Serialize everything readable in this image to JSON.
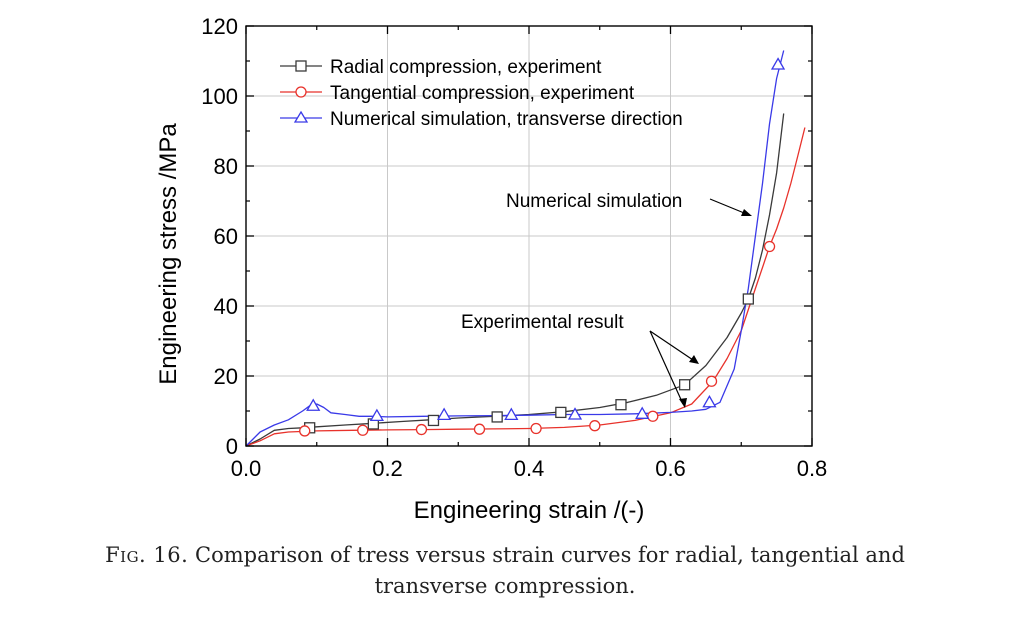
{
  "chart_data": {
    "type": "line",
    "xlabel": "Engineering strain /(-)",
    "ylabel": "Engineering stress /MPa",
    "xlim": [
      0.0,
      0.8
    ],
    "ylim": [
      0,
      120
    ],
    "x_ticks": [
      "0.0",
      "0.2",
      "0.4",
      "0.6",
      "0.8"
    ],
    "y_ticks": [
      "0",
      "20",
      "40",
      "60",
      "80",
      "100",
      "120"
    ],
    "grid": true,
    "legend_position": "top-left",
    "series": [
      {
        "name": "Radial compression, experiment",
        "color": "#3a3a3a",
        "marker": "square",
        "x": [
          0.0,
          0.02,
          0.04,
          0.06,
          0.08,
          0.1,
          0.14,
          0.18,
          0.22,
          0.26,
          0.3,
          0.35,
          0.4,
          0.45,
          0.5,
          0.54,
          0.58,
          0.62,
          0.65,
          0.68,
          0.7,
          0.71,
          0.72,
          0.73,
          0.74,
          0.75,
          0.76
        ],
        "y": [
          0,
          2,
          4.5,
          5,
          5.2,
          5.5,
          6,
          6.5,
          7,
          7.5,
          8,
          8.5,
          9,
          9.8,
          11,
          12.5,
          14.5,
          17.5,
          23,
          31,
          38,
          42,
          48,
          56,
          66,
          78,
          95
        ],
        "marker_x": [
          0.09,
          0.18,
          0.265,
          0.355,
          0.445,
          0.53,
          0.62,
          0.71
        ],
        "marker_y": [
          5.2,
          6.3,
          7.3,
          8.3,
          9.6,
          11.8,
          17.5,
          42
        ]
      },
      {
        "name": "Tangential compression, experiment",
        "color": "#e8322b",
        "marker": "circle",
        "x": [
          0.0,
          0.02,
          0.04,
          0.06,
          0.1,
          0.15,
          0.2,
          0.25,
          0.3,
          0.35,
          0.4,
          0.45,
          0.5,
          0.55,
          0.6,
          0.63,
          0.66,
          0.68,
          0.7,
          0.72,
          0.73,
          0.74,
          0.75,
          0.76,
          0.77,
          0.78,
          0.79
        ],
        "y": [
          0,
          1.5,
          3.5,
          4,
          4.3,
          4.5,
          4.6,
          4.7,
          4.8,
          4.9,
          5,
          5.3,
          6,
          7.3,
          9.5,
          12,
          18.5,
          25,
          33,
          45,
          51,
          57,
          62,
          68,
          75,
          83,
          91
        ],
        "marker_x": [
          0.083,
          0.165,
          0.248,
          0.33,
          0.41,
          0.493,
          0.575,
          0.658,
          0.74
        ],
        "marker_y": [
          4.3,
          4.5,
          4.7,
          4.8,
          5,
          5.8,
          8.5,
          18.5,
          57
        ]
      },
      {
        "name": "Numerical simulation, transverse direction",
        "color": "#3a3ae8",
        "marker": "triangle",
        "x": [
          0.0,
          0.01,
          0.02,
          0.04,
          0.06,
          0.08,
          0.09,
          0.1,
          0.11,
          0.12,
          0.14,
          0.16,
          0.18,
          0.2,
          0.25,
          0.3,
          0.35,
          0.4,
          0.45,
          0.5,
          0.55,
          0.6,
          0.63,
          0.65,
          0.67,
          0.69,
          0.7,
          0.71,
          0.72,
          0.73,
          0.74,
          0.75,
          0.76
        ],
        "y": [
          0,
          2,
          4,
          6,
          7.5,
          10,
          11.5,
          12,
          11,
          9.5,
          9,
          8.5,
          8.5,
          8.3,
          8.5,
          8.6,
          8.7,
          8.8,
          9,
          9,
          9.2,
          9.6,
          10,
          10.5,
          12.5,
          22,
          33,
          45,
          60,
          75,
          92,
          105,
          113
        ],
        "marker_x": [
          0.095,
          0.185,
          0.28,
          0.375,
          0.465,
          0.56,
          0.655,
          0.752
        ],
        "marker_y": [
          11.5,
          8.6,
          8.9,
          8.9,
          9,
          9.2,
          12.5,
          109
        ]
      }
    ],
    "annotations": [
      {
        "text": "Numerical simulation"
      },
      {
        "text": "Experimental result"
      }
    ]
  },
  "caption": {
    "label": "Fig. 16.",
    "text": "Comparison of tress versus strain curves for radial, tangential and transverse compression."
  }
}
